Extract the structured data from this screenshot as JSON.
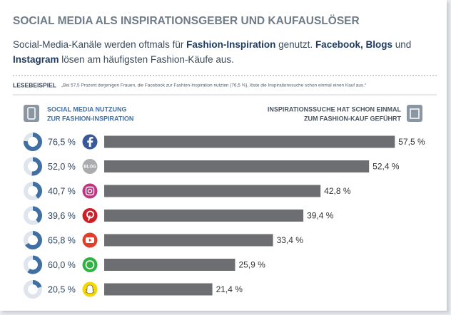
{
  "title": "SOCIAL MEDIA ALS INSPIRATIONSGEBER UND KAUFAUSLÖSER",
  "subtitle": {
    "lines": [
      [
        {
          "text": "Social-Media-Kanäle werden oftmals für ",
          "bold": false
        },
        {
          "text": "Fashion-Inspiration",
          "bold": true
        },
        {
          "text": " genutzt. ",
          "bold": false
        },
        {
          "text": "Facebook, Blogs",
          "bold": true
        },
        {
          "text": " und",
          "bold": false
        }
      ],
      [
        {
          "text": "Instagram",
          "bold": true
        },
        {
          "text": " lösen am häufigsten Fashion-Käufe aus.",
          "bold": false
        }
      ]
    ]
  },
  "reading_example": {
    "label": "LESEBEISPIEL",
    "text": "„Bei 57,5 Prozent derjenigen Frauen, die Facebook zur Fashion-Inspiration nutzten (76,5 %), löste die Inspirationssuche schon einmal einen Kauf aus.“"
  },
  "chart_data": {
    "type": "bar",
    "blog_icon_text": "BLOG",
    "xlim": [
      0,
      60
    ],
    "series": [
      {
        "name_lines": [
          "SOCIAL MEDIA NUTZUNG",
          "ZUR FASHION-INSPIRATION"
        ],
        "type": "donut",
        "color": "#3f6fa3",
        "values": [
          76.5,
          52.0,
          40.7,
          39.6,
          65.8,
          60.0,
          20.5
        ],
        "value_labels": [
          "76,5 %",
          "52,0 %",
          "40,7 %",
          "39,6 %",
          "65,8 %",
          "60,0 %",
          "20,5 %"
        ]
      },
      {
        "name_lines": [
          "INSPIRATIONSSUCHE HAT SCHON EINMAL",
          "ZUM FASHION-KAUF GEFÜHRT"
        ],
        "type": "bar",
        "color": "#6d6e72",
        "values": [
          57.5,
          52.4,
          42.8,
          39.4,
          33.4,
          25.9,
          21.4
        ],
        "value_labels": [
          "57,5 %",
          "52,4 %",
          "42,8 %",
          "39,4 %",
          "33,4 %",
          "25,9 %",
          "21,4 %"
        ]
      }
    ]
  }
}
